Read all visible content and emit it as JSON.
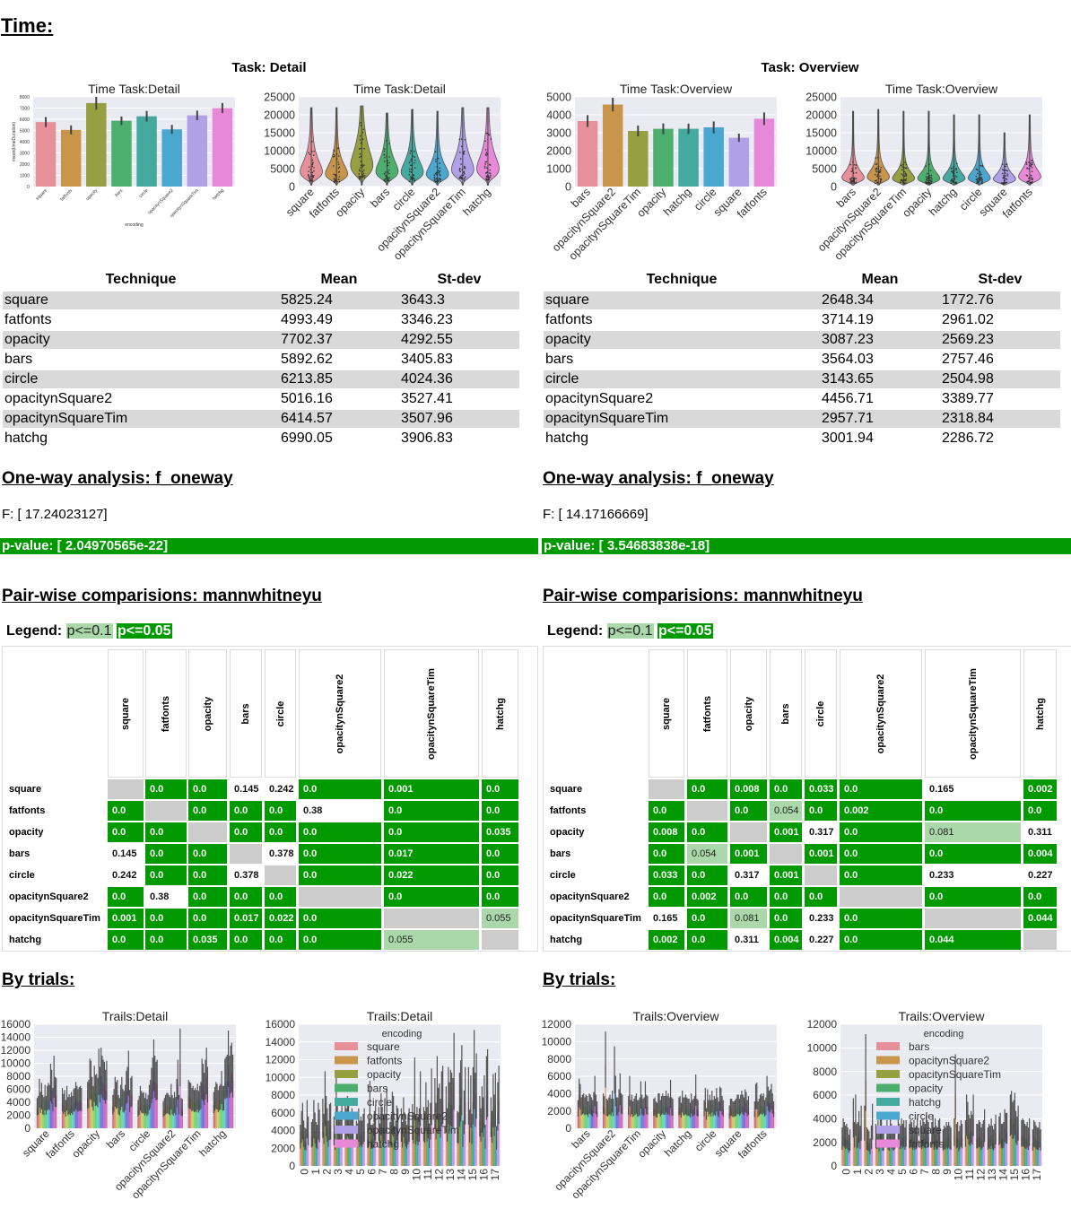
{
  "title": "Time:",
  "panels": [
    {
      "task_title": "Task: Detail",
      "table": {
        "headers": [
          "Technique",
          "Mean",
          "St-dev"
        ],
        "rows": [
          [
            "square",
            "5825.24",
            "3643.3"
          ],
          [
            "fatfonts",
            "4993.49",
            "3346.23"
          ],
          [
            "opacity",
            "7702.37",
            "4292.55"
          ],
          [
            "bars",
            "5892.62",
            "3405.83"
          ],
          [
            "circle",
            "6213.85",
            "4024.36"
          ],
          [
            "opacitynSquare2",
            "5016.16",
            "3527.41"
          ],
          [
            "opacitynSquareTim",
            "6414.57",
            "3507.96"
          ],
          [
            "hatchg",
            "6990.05",
            "3906.83"
          ]
        ]
      },
      "oneway_title": "One-way analysis: f_oneway",
      "f_value": "F: [ 17.24023127]",
      "p_value": "p-value: [ 2.04970565e-22]",
      "pairwise_title": "Pair-wise comparisions: mannwhitneyu",
      "legend": {
        "label": "Legend:",
        "light": "p<=0.1",
        "dark": "p<=0.05"
      },
      "matrix": {
        "col_labels": [
          "square",
          "fatfonts",
          "opacity",
          "bars",
          "circle",
          "opacitynSquare2",
          "opacitynSquareTim",
          "hatchg"
        ],
        "row_labels": [
          "square",
          "fatfonts",
          "opacity",
          "bars",
          "circle",
          "opacitynSquare2",
          "opacitynSquareTim",
          "hatchg"
        ],
        "values": [
          [
            null,
            "0.0",
            "0.0",
            "0.145",
            "0.242",
            "0.0",
            "0.001",
            "0.0"
          ],
          [
            "0.0",
            null,
            "0.0",
            "0.0",
            "0.0",
            "0.38",
            "0.0",
            "0.0"
          ],
          [
            "0.0",
            "0.0",
            null,
            "0.0",
            "0.0",
            "0.0",
            "0.0",
            "0.035"
          ],
          [
            "0.145",
            "0.0",
            "0.0",
            null,
            "0.378",
            "0.0",
            "0.017",
            "0.0"
          ],
          [
            "0.242",
            "0.0",
            "0.0",
            "0.378",
            null,
            "0.0",
            "0.022",
            "0.0"
          ],
          [
            "0.0",
            "0.38",
            "0.0",
            "0.0",
            "0.0",
            null,
            "0.0",
            "0.0"
          ],
          [
            "0.001",
            "0.0",
            "0.0",
            "0.017",
            "0.022",
            "0.0",
            null,
            "0.055"
          ],
          [
            "0.0",
            "0.0",
            "0.035",
            "0.0",
            "0.0",
            "0.0",
            "0.055",
            null
          ]
        ]
      },
      "trials_title": "By trials:"
    },
    {
      "task_title": "Task: Overview",
      "table": {
        "headers": [
          "Technique",
          "Mean",
          "St-dev"
        ],
        "rows": [
          [
            "square",
            "2648.34",
            "1772.76"
          ],
          [
            "fatfonts",
            "3714.19",
            "2961.02"
          ],
          [
            "opacity",
            "3087.23",
            "2569.23"
          ],
          [
            "bars",
            "3564.03",
            "2757.46"
          ],
          [
            "circle",
            "3143.65",
            "2504.98"
          ],
          [
            "opacitynSquare2",
            "4456.71",
            "3389.77"
          ],
          [
            "opacitynSquareTim",
            "2957.71",
            "2318.84"
          ],
          [
            "hatchg",
            "3001.94",
            "2286.72"
          ]
        ]
      },
      "oneway_title": "One-way analysis: f_oneway",
      "f_value": "F: [ 14.17166669]",
      "p_value": "p-value: [ 3.54683838e-18]",
      "pairwise_title": "Pair-wise comparisions: mannwhitneyu",
      "legend": {
        "label": "Legend:",
        "light": "p<=0.1",
        "dark": "p<=0.05"
      },
      "matrix": {
        "col_labels": [
          "square",
          "fatfonts",
          "opacity",
          "bars",
          "circle",
          "opacitynSquare2",
          "opacitynSquareTim",
          "hatchg"
        ],
        "row_labels": [
          "square",
          "fatfonts",
          "opacity",
          "bars",
          "circle",
          "opacitynSquare2",
          "opacitynSquareTim",
          "hatchg"
        ],
        "values": [
          [
            null,
            "0.0",
            "0.008",
            "0.0",
            "0.033",
            "0.0",
            "0.165",
            "0.002"
          ],
          [
            "0.0",
            null,
            "0.0",
            "0.054",
            "0.0",
            "0.002",
            "0.0",
            "0.0"
          ],
          [
            "0.008",
            "0.0",
            null,
            "0.001",
            "0.317",
            "0.0",
            "0.081",
            "0.311"
          ],
          [
            "0.0",
            "0.054",
            "0.001",
            null,
            "0.001",
            "0.0",
            "0.0",
            "0.004"
          ],
          [
            "0.033",
            "0.0",
            "0.317",
            "0.001",
            null,
            "0.0",
            "0.233",
            "0.227"
          ],
          [
            "0.0",
            "0.002",
            "0.0",
            "0.0",
            "0.0",
            null,
            "0.0",
            "0.0"
          ],
          [
            "0.165",
            "0.0",
            "0.081",
            "0.0",
            "0.233",
            "0.0",
            null,
            "0.044"
          ],
          [
            "0.002",
            "0.0",
            "0.311",
            "0.004",
            "0.227",
            "0.0",
            "0.044",
            null
          ]
        ]
      },
      "trials_title": "By trials:"
    }
  ],
  "chart_data": [
    {
      "type": "bar",
      "title": "Time Task:Detail",
      "xlabel": "encoding",
      "ylabel": "mean(timeDuration)",
      "categories": [
        "square",
        "fatfonts",
        "opacity",
        "bars",
        "circle",
        "opacitynSquare2",
        "opacitynSquareTim",
        "hatchg"
      ],
      "values": [
        5750,
        5050,
        7450,
        5870,
        6270,
        5100,
        6350,
        7000
      ],
      "ci": [
        450,
        400,
        600,
        380,
        470,
        400,
        420,
        450
      ],
      "ylim": [
        0,
        8000
      ],
      "yticks": [
        0,
        1000,
        2000,
        3000,
        4000,
        5000,
        6000,
        7000,
        8000
      ],
      "colors": [
        "#e8909a",
        "#c8954a",
        "#96a040",
        "#4caf6e",
        "#44aaa0",
        "#4aa8d0",
        "#b0a0e8",
        "#e888d8"
      ]
    },
    {
      "type": "violin",
      "title": "Time Task:Detail",
      "categories": [
        "square",
        "fatfonts",
        "opacity",
        "bars",
        "circle",
        "opacitynSquare2",
        "opacitynSquareTim",
        "hatchg"
      ],
      "medians": [
        4200,
        3600,
        6000,
        4300,
        4100,
        3500,
        4800,
        5000
      ],
      "max": [
        22000,
        22000,
        22500,
        20500,
        21500,
        21000,
        22000,
        22000
      ],
      "ylim": [
        0,
        25000
      ],
      "yticks": [
        0,
        5000,
        10000,
        15000,
        20000,
        25000
      ],
      "colors": [
        "#e8909a",
        "#c8954a",
        "#96a040",
        "#4caf6e",
        "#44aaa0",
        "#4aa8d0",
        "#b0a0e8",
        "#e888d8"
      ]
    },
    {
      "type": "bar",
      "title": "Time Task:Overview",
      "categories": [
        "bars",
        "opacitynSquare2",
        "opacitynSquareTim",
        "opacity",
        "hatchg",
        "circle",
        "square",
        "fatfonts"
      ],
      "values": [
        3650,
        4570,
        3100,
        3220,
        3220,
        3300,
        2720,
        3780
      ],
      "ci": [
        330,
        380,
        300,
        300,
        290,
        330,
        230,
        350
      ],
      "ylim": [
        0,
        5000
      ],
      "yticks": [
        0,
        1000,
        2000,
        3000,
        4000,
        5000
      ],
      "colors": [
        "#e8909a",
        "#c8954a",
        "#96a040",
        "#4caf6e",
        "#44aaa0",
        "#4aa8d0",
        "#b0a0e8",
        "#e888d8"
      ]
    },
    {
      "type": "violin",
      "title": "Time Task:Overview",
      "categories": [
        "bars",
        "opacitynSquare2",
        "opacitynSquareTim",
        "opacity",
        "hatchg",
        "circle",
        "square",
        "fatfonts"
      ],
      "medians": [
        2500,
        2700,
        2300,
        2300,
        2300,
        2400,
        2100,
        2800
      ],
      "max": [
        21000,
        21500,
        21000,
        21000,
        20000,
        20000,
        15000,
        20000
      ],
      "ylim": [
        0,
        25000
      ],
      "yticks": [
        0,
        5000,
        10000,
        15000,
        20000,
        25000
      ],
      "colors": [
        "#e8909a",
        "#c8954a",
        "#96a040",
        "#4caf6e",
        "#44aaa0",
        "#4aa8d0",
        "#b0a0e8",
        "#e888d8"
      ]
    },
    {
      "type": "grouped-bar",
      "title": "Trails:Detail",
      "group_by": "encoding",
      "source": "detail_trials",
      "ylim": [
        0,
        16000
      ],
      "yticks": [
        0,
        2000,
        4000,
        6000,
        8000,
        10000,
        12000,
        14000,
        16000
      ]
    },
    {
      "type": "grouped-bar",
      "title": "Trails:Detail",
      "group_by": "trial",
      "source": "detail_trials",
      "legend_title": "encoding",
      "ylim": [
        0,
        16000
      ],
      "yticks": [
        0,
        2000,
        4000,
        6000,
        8000,
        10000,
        12000,
        14000,
        16000
      ]
    },
    {
      "type": "grouped-bar",
      "title": "Trails:Overview",
      "group_by": "encoding",
      "source": "overview_trials",
      "ylim": [
        0,
        12000
      ],
      "yticks": [
        0,
        2000,
        4000,
        6000,
        8000,
        10000,
        12000
      ]
    },
    {
      "type": "grouped-bar",
      "title": "Trails:Overview",
      "group_by": "trial",
      "source": "overview_trials",
      "legend_title": "encoding",
      "ylim": [
        0,
        12000
      ],
      "yticks": [
        0,
        2000,
        4000,
        6000,
        8000,
        10000,
        12000
      ]
    }
  ],
  "trials": {
    "trial_labels": [
      "0",
      "1",
      "2",
      "3",
      "4",
      "5",
      "6",
      "7",
      "8",
      "9",
      "10",
      "11",
      "12",
      "13",
      "14",
      "15",
      "16",
      "17"
    ],
    "detail_trials": {
      "encodings": [
        "square",
        "fatfonts",
        "opacity",
        "bars",
        "circle",
        "opacitynSquare2",
        "opacitynSquareTim",
        "hatchg"
      ],
      "values": [
        [
          3000,
          3200,
          4900,
          3600,
          4500,
          3300,
          3100,
          4300,
          3200,
          4200,
          4500,
          4300,
          6400,
          5800,
          4000,
          7200,
          5100,
          5000
        ],
        [
          4000,
          3400,
          3800,
          2800,
          4200,
          3100,
          3400,
          3100,
          3600,
          3200,
          3900,
          4000,
          4600,
          4200,
          3900,
          4100,
          4200,
          4000
        ],
        [
          4600,
          4800,
          6900,
          6700,
          5100,
          4200,
          6200,
          5300,
          5400,
          5000,
          7900,
          6100,
          8000,
          7200,
          6800,
          6600,
          5800,
          6700
        ],
        [
          3300,
          3900,
          5100,
          4600,
          4800,
          3300,
          3000,
          4300,
          5100,
          3900,
          3700,
          4300,
          5700,
          6100,
          7700,
          3800,
          5000,
          5200
        ],
        [
          2800,
          3200,
          4200,
          3700,
          3500,
          3600,
          3000,
          3500,
          2900,
          3300,
          4300,
          4800,
          6000,
          7000,
          8800,
          7200,
          6600,
          6800
        ],
        [
          2700,
          3000,
          3300,
          3500,
          3500,
          3300,
          3100,
          4400,
          3300,
          3000,
          3600,
          3100,
          4900,
          6800,
          3300,
          9900,
          3000,
          2900
        ],
        [
          4800,
          4600,
          4500,
          4000,
          4200,
          3800,
          4000,
          3800,
          4400,
          3700,
          4200,
          4600,
          6900,
          6400,
          5500,
          6800,
          8000,
          6100
        ],
        [
          3600,
          4100,
          4600,
          4400,
          3800,
          4200,
          4400,
          5700,
          4200,
          4200,
          6900,
          7100,
          7300,
          9700,
          7200,
          8200,
          8500,
          7300
        ]
      ]
    },
    "overview_trials": {
      "encodings": [
        "bars",
        "opacitynSquare2",
        "opacitynSquareTim",
        "opacity",
        "hatchg",
        "circle",
        "square",
        "fatfonts"
      ],
      "values": [
        [
          2100,
          3700,
          3300,
          2300,
          2500,
          2600,
          2300,
          2500,
          2400,
          2000,
          2600,
          2500,
          2300,
          2100,
          2700,
          3900,
          2500,
          2000
        ],
        [
          2600,
          2400,
          7200,
          2200,
          2100,
          2300,
          2500,
          2200,
          2800,
          2200,
          6100,
          3900,
          2300,
          2300,
          2900,
          4100,
          2600,
          2500
        ],
        [
          2400,
          3900,
          2100,
          2500,
          2000,
          2200,
          2400,
          2600,
          2100,
          2100,
          2300,
          3500,
          2500,
          2200,
          2300,
          3500,
          2500,
          2400
        ],
        [
          2200,
          2300,
          2000,
          1900,
          2600,
          2600,
          2100,
          2400,
          2600,
          2400,
          2400,
          2800,
          2400,
          2600,
          2300,
          3600,
          2300,
          2200
        ],
        [
          2300,
          2400,
          1900,
          2800,
          2300,
          2300,
          2500,
          2300,
          2200,
          2200,
          1900,
          2600,
          2100,
          2200,
          2400,
          4000,
          2200,
          2100
        ],
        [
          2100,
          3000,
          1500,
          2900,
          2100,
          2500,
          2100,
          2800,
          2100,
          2400,
          2200,
          3000,
          2300,
          2000,
          3100,
          3000,
          2400,
          2100
        ],
        [
          1700,
          2200,
          2200,
          2000,
          2000,
          2100,
          2200,
          2500,
          2500,
          2200,
          2500,
          2800,
          2500,
          2300,
          2900,
          2700,
          2100,
          2400
        ],
        [
          2000,
          3300,
          3400,
          2000,
          2200,
          2500,
          2600,
          2400,
          2600,
          2100,
          2300,
          3900,
          3100,
          2800,
          2900,
          3300,
          2600,
          2000
        ]
      ]
    }
  }
}
